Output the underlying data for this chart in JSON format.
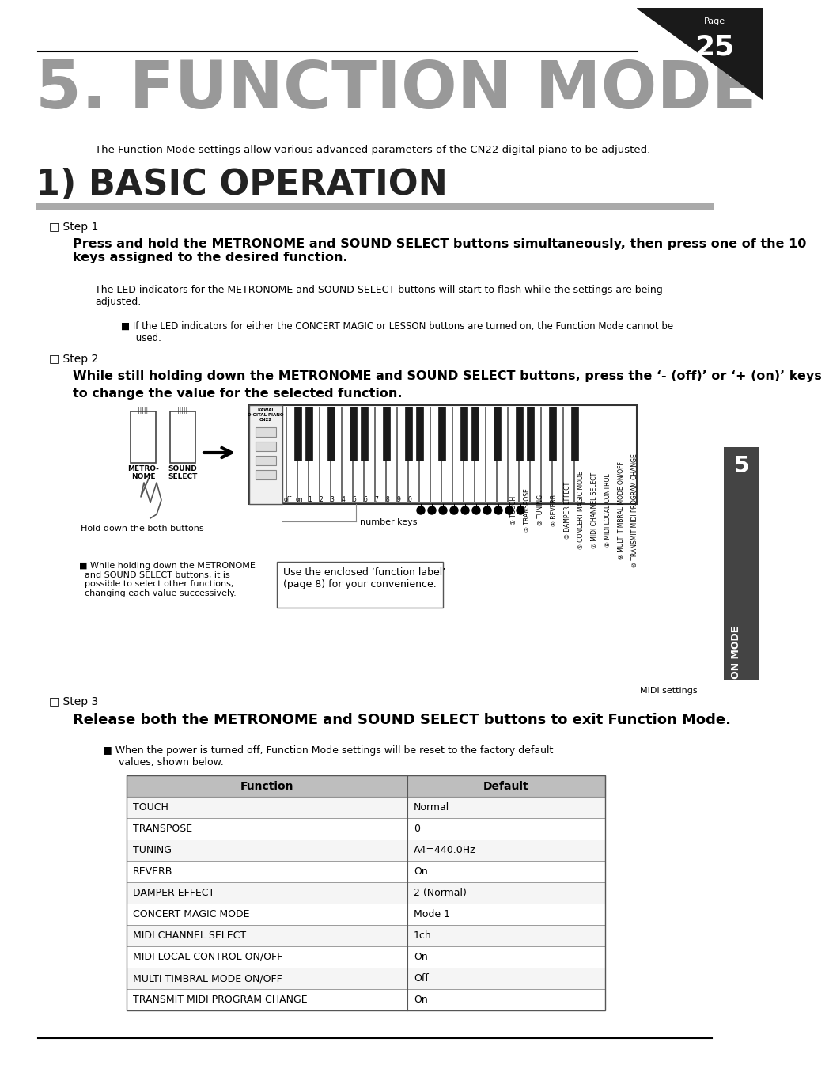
{
  "page_num": "25",
  "bg_color": "#ffffff",
  "title_section": "5. FUNCTION MODE",
  "title_color": "#999999",
  "intro_text": "The Function Mode settings allow various advanced parameters of the CN22 digital piano to be adjusted.",
  "section_title": "1) BASIC OPERATION",
  "step1_label": "□ Step 1",
  "step1_bold": "Press and hold the METRONOME and SOUND SELECT buttons simultaneously, then press one of the 10\nkeys assigned to the desired function.",
  "step1_note": "The LED indicators for the METRONOME and SOUND SELECT buttons will start to flash while the settings are being\nadjusted.",
  "step1_bullet": "■ If the LED indicators for either the CONCERT MAGIC or LESSON buttons are turned on, the Function Mode cannot be\n     used.",
  "step2_label": "□ Step 2",
  "step2_bold_line1": "While still holding down the METRONOME and SOUND SELECT buttons, press the ‘- (off)’ or ‘+ (on)’ keys",
  "step2_bold_line2": "to change the value for the selected function.",
  "step2_note_left": "■ While holding down the METRONOME\n  and SOUND SELECT buttons, it is\n  possible to select other functions,\n  changing each value successively.",
  "step2_note_right": "Use the enclosed ‘function label’\n(page 8) for your convenience.",
  "label_hold": "Hold down the both buttons",
  "label_number_keys": "number keys",
  "step3_label": "□ Step 3",
  "step3_bold": "Release both the METRONOME and SOUND SELECT buttons to exit Function Mode.",
  "step3_bullet": "■ When the power is turned off, Function Mode settings will be reset to the factory default\n     values, shown below.",
  "table_headers": [
    "Function",
    "Default"
  ],
  "table_rows": [
    [
      "TOUCH",
      "Normal"
    ],
    [
      "TRANSPOSE",
      "0"
    ],
    [
      "TUNING",
      "A4=440.0Hz"
    ],
    [
      "REVERB",
      "On"
    ],
    [
      "DAMPER EFFECT",
      "2 (Normal)"
    ],
    [
      "CONCERT MAGIC MODE",
      "Mode 1"
    ],
    [
      "MIDI CHANNEL SELECT",
      "1ch"
    ],
    [
      "MIDI LOCAL CONTROL ON/OFF",
      "On"
    ],
    [
      "MULTI TIMBRAL MODE ON/OFF",
      "Off"
    ],
    [
      "TRANSMIT MIDI PROGRAM CHANGE",
      "On"
    ]
  ],
  "sidebar_labels": [
    "① TOUCH",
    "② TRANSPOSE",
    "③ TUNING",
    "④ REVERB",
    "⑤ DAMPER EFFECT",
    "⑥ CONCERT MAGIC MODE",
    "⑦ MIDI CHANNEL SELECT",
    "⑧ MIDI LOCAL CONTROL",
    "⑨ MULTI TIMBRAL MODE ON/OFF",
    "⑩ TRANSMIT MIDI PROGRAM CHANGE"
  ],
  "right_sidebar_text": "FUNCTION MODE",
  "right_sidebar_num": "5",
  "midi_label": "MIDI settings"
}
